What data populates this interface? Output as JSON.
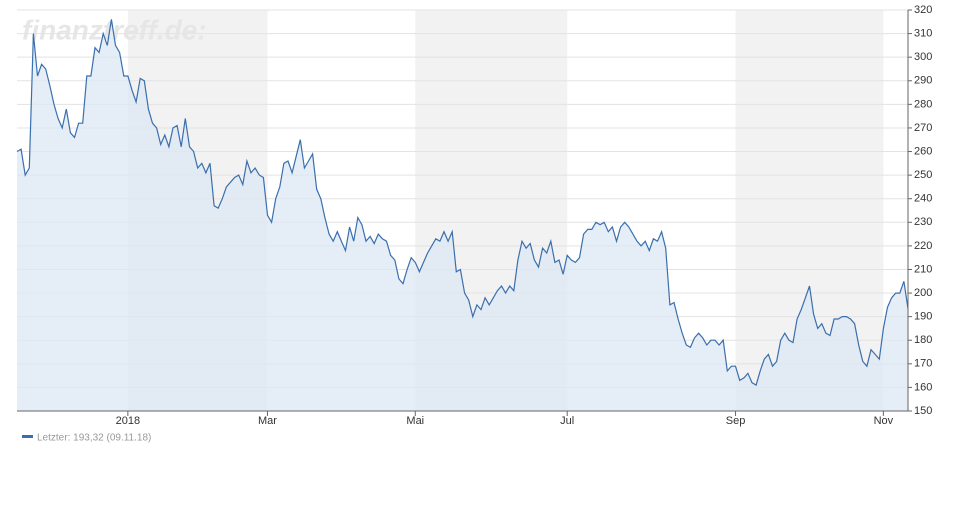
{
  "chart_data": {
    "type": "area",
    "watermark": "finanztreff.de:",
    "xlim": [
      0,
      217
    ],
    "xticks": [
      {
        "value": 27,
        "label": "2018"
      },
      {
        "value": 61,
        "label": "Mar"
      },
      {
        "value": 97,
        "label": "Mai"
      },
      {
        "value": 134,
        "label": "Jul"
      },
      {
        "value": 175,
        "label": "Sep"
      },
      {
        "value": 211,
        "label": "Nov"
      }
    ],
    "ylim": [
      150,
      320
    ],
    "yticks": [
      150,
      160,
      170,
      180,
      190,
      200,
      210,
      220,
      230,
      240,
      250,
      260,
      270,
      280,
      290,
      300,
      310,
      320
    ],
    "grid": true,
    "band_color": "#f2f2f2",
    "series": [
      {
        "name": "Letzter: 193,32 (09.11.18)",
        "color": "#3a6fae",
        "fill": "#dce7f3",
        "values": [
          260,
          261,
          250,
          253,
          310,
          292,
          297,
          295,
          288,
          280,
          274,
          270,
          278,
          268,
          266,
          272,
          272,
          292,
          292,
          304,
          302,
          310,
          305,
          316,
          305,
          302,
          292,
          292,
          286,
          281,
          291,
          290,
          278,
          272,
          270,
          263,
          267,
          262,
          270,
          271,
          262,
          274,
          262,
          260,
          253,
          255,
          251,
          255,
          237,
          236,
          240,
          245,
          247,
          249,
          250,
          246,
          256,
          251,
          253,
          250,
          249,
          233,
          230,
          240,
          245,
          255,
          256,
          251,
          258,
          265,
          253,
          256,
          259,
          244,
          240,
          232,
          225,
          222,
          226,
          222,
          218,
          228,
          222,
          232,
          229,
          222,
          224,
          221,
          225,
          223,
          222,
          216,
          214,
          206,
          204,
          210,
          215,
          213,
          209,
          213,
          217,
          220,
          223,
          222,
          226,
          222,
          226,
          209,
          210,
          200,
          197,
          190,
          195,
          193,
          198,
          195,
          198,
          201,
          203,
          200,
          203,
          201,
          214,
          222,
          219,
          221,
          214,
          211,
          219,
          217,
          222,
          213,
          214,
          208,
          216,
          214,
          213,
          215,
          225,
          227,
          227,
          230,
          229,
          230,
          226,
          228,
          222,
          228,
          230,
          228,
          225,
          222,
          220,
          222,
          218,
          223,
          222,
          226,
          219,
          195,
          196,
          189,
          183,
          178,
          177,
          181,
          183,
          181,
          178,
          180,
          180,
          178,
          180,
          167,
          169,
          169,
          163,
          164,
          166,
          162,
          161,
          167,
          172,
          174,
          169,
          171,
          180,
          183,
          180,
          179,
          189,
          193,
          198,
          203,
          191,
          185,
          187,
          183,
          182,
          189,
          189,
          190,
          190,
          189,
          187,
          178,
          171,
          169,
          176,
          174,
          172,
          185,
          194,
          198,
          200,
          200,
          205,
          193.32
        ]
      }
    ]
  }
}
